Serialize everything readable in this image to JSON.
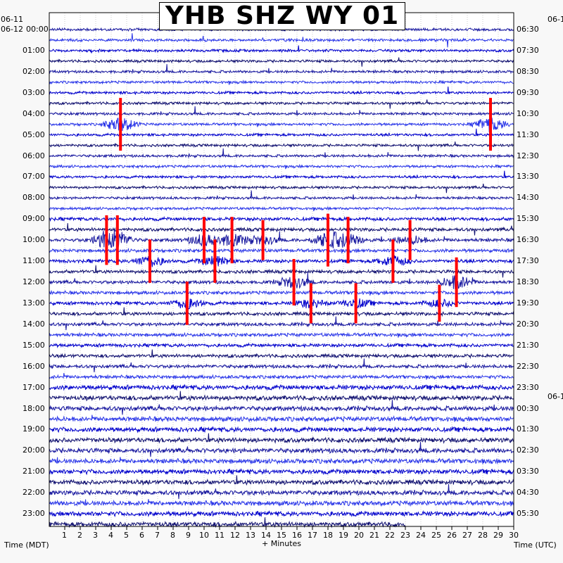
{
  "chart_data": {
    "type": "heatmap",
    "title": "YHB SHZ WY 01",
    "xlabel": "+ Minutes",
    "left_axis_caption": "Time (MDT)",
    "right_axis_caption": "Time (UTC)",
    "left_date_top": "06-11",
    "left_date_start": "06-12",
    "right_date_top": "06-1",
    "right_date_mid": "06-1",
    "x_ticks": [
      "1",
      "2",
      "3",
      "4",
      "5",
      "6",
      "7",
      "8",
      "9",
      "10",
      "11",
      "12",
      "13",
      "14",
      "15",
      "16",
      "17",
      "18",
      "19",
      "20",
      "21",
      "22",
      "23",
      "24",
      "25",
      "26",
      "27",
      "28",
      "29",
      "30"
    ],
    "xlim": [
      0,
      30
    ],
    "left_time_labels": [
      "00:00",
      "01:00",
      "02:00",
      "03:00",
      "04:00",
      "05:00",
      "06:00",
      "07:00",
      "08:00",
      "09:00",
      "10:00",
      "11:00",
      "12:00",
      "13:00",
      "14:00",
      "15:00",
      "16:00",
      "17:00",
      "18:00",
      "19:00",
      "20:00",
      "21:00",
      "22:00",
      "23:00"
    ],
    "right_time_labels": [
      "06:30",
      "07:30",
      "08:30",
      "09:30",
      "10:30",
      "11:30",
      "12:30",
      "13:30",
      "14:30",
      "15:30",
      "16:30",
      "17:30",
      "18:30",
      "19:30",
      "20:30",
      "21:30",
      "22:30",
      "23:30",
      "00:30",
      "01:30",
      "02:30",
      "03:30",
      "04:30",
      "05:30"
    ],
    "trace_rows": 48,
    "trace_colors": [
      "#1a1aa0",
      "#2a36e8",
      "#0000cc",
      "#101070"
    ],
    "clip_color": "#ff0000",
    "last_row_end_minute": 23,
    "events": [
      {
        "row": 9,
        "minute": 4.6,
        "clipped": true,
        "strength": 1.0
      },
      {
        "row": 9,
        "minute": 28.5,
        "clipped": true,
        "strength": 1.0
      },
      {
        "row": 20,
        "minute": 3.7,
        "clipped": true,
        "strength": 0.9
      },
      {
        "row": 20,
        "minute": 4.4,
        "clipped": true,
        "strength": 0.9
      },
      {
        "row": 20,
        "minute": 10.0,
        "clipped": true,
        "strength": 0.8
      },
      {
        "row": 20,
        "minute": 11.8,
        "clipped": true,
        "strength": 0.8
      },
      {
        "row": 20,
        "minute": 13.8,
        "clipped": true,
        "strength": 0.6
      },
      {
        "row": 20,
        "minute": 18.0,
        "clipped": true,
        "strength": 1.0
      },
      {
        "row": 20,
        "minute": 19.3,
        "clipped": true,
        "strength": 0.8
      },
      {
        "row": 20,
        "minute": 23.3,
        "clipped": true,
        "strength": 0.6
      },
      {
        "row": 22,
        "minute": 6.5,
        "clipped": true,
        "strength": 0.7
      },
      {
        "row": 22,
        "minute": 10.7,
        "clipped": true,
        "strength": 0.7
      },
      {
        "row": 22,
        "minute": 22.2,
        "clipped": true,
        "strength": 0.7
      },
      {
        "row": 24,
        "minute": 15.8,
        "clipped": true,
        "strength": 0.8
      },
      {
        "row": 24,
        "minute": 26.3,
        "clipped": true,
        "strength": 0.9
      },
      {
        "row": 26,
        "minute": 8.9,
        "clipped": true,
        "strength": 0.7
      },
      {
        "row": 26,
        "minute": 16.9,
        "clipped": true,
        "strength": 0.6
      },
      {
        "row": 26,
        "minute": 19.8,
        "clipped": true,
        "strength": 0.6
      },
      {
        "row": 26,
        "minute": 25.2,
        "clipped": true,
        "strength": 0.5
      }
    ]
  }
}
